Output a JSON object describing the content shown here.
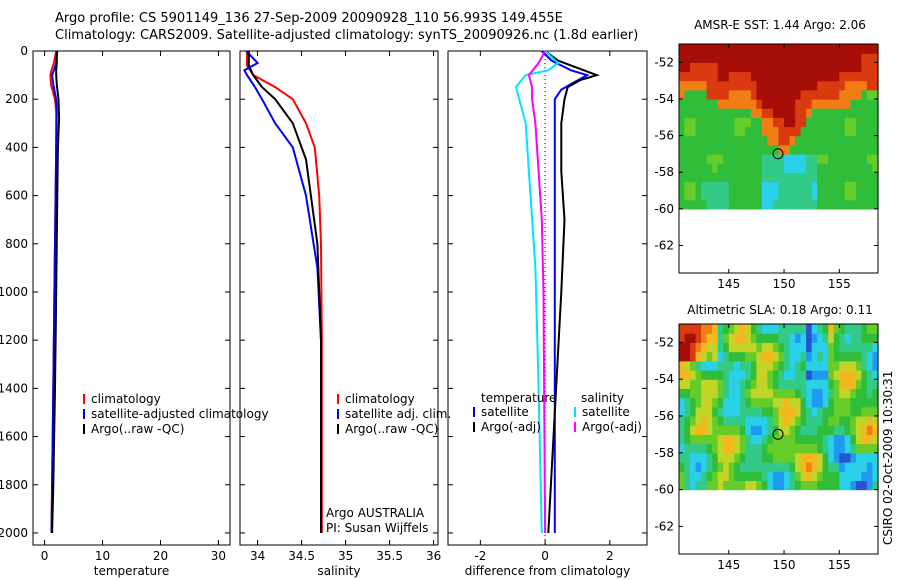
{
  "header": {
    "title_line1": "Argo profile: CS 5901149_136 27-Sep-2009 20090928_110 56.993S 149.455E",
    "title_line2": "Climatology: CARS2009. Satellite-adjusted climatology: synTS_20090926.nc (1.8d earlier)"
  },
  "footer_stamp": "CSIRO 02-Oct-2009 10:30:31",
  "colors": {
    "climatology": "#ff0000",
    "satellite": "#0000ff",
    "argo": "#000000",
    "sal_satellite": "#00e5ff",
    "sal_argo": "#ff00ff"
  },
  "chart_data": [
    {
      "id": "temperature",
      "type": "line",
      "xlabel": "temperature",
      "ylabel": "",
      "xlim": [
        -2,
        32
      ],
      "ylim": [
        2050,
        0
      ],
      "xticks": [
        0,
        10,
        20,
        30
      ],
      "yticks": [
        0,
        200,
        400,
        600,
        800,
        1000,
        1200,
        1400,
        1600,
        1800,
        2000
      ],
      "legend": [
        "climatology",
        "satellite-adjusted climatology",
        "Argo(..raw -QC)"
      ],
      "series": [
        {
          "name": "climatology",
          "color": "#ff0000",
          "x": [
            2.0,
            1.6,
            1.2,
            1.0,
            1.1,
            1.8,
            2.0,
            2.0,
            1.9,
            1.7,
            1.5,
            1.3,
            1.2
          ],
          "y": [
            0,
            50,
            80,
            100,
            140,
            200,
            250,
            400,
            600,
            1000,
            1400,
            1800,
            2000
          ]
        },
        {
          "name": "satellite-adjusted climatology",
          "color": "#0000ff",
          "x": [
            2.2,
            2.0,
            1.6,
            1.3,
            1.5,
            2.0,
            2.1,
            2.0,
            1.9,
            1.7,
            1.5,
            1.3,
            1.2
          ],
          "y": [
            0,
            50,
            80,
            100,
            140,
            200,
            250,
            400,
            600,
            1000,
            1400,
            1800,
            2000
          ]
        },
        {
          "name": "Argo(..raw -QC)",
          "color": "#000000",
          "x": [
            2.1,
            2.1,
            2.0,
            2.0,
            2.1,
            2.4,
            2.5,
            2.3,
            2.2,
            2.0,
            1.8,
            1.5,
            1.3
          ],
          "y": [
            0,
            50,
            80,
            100,
            140,
            200,
            280,
            400,
            600,
            1000,
            1400,
            1800,
            2000
          ]
        }
      ]
    },
    {
      "id": "salinity",
      "type": "line",
      "xlabel": "salinity",
      "ylabel": "",
      "xlim": [
        33.8,
        36.05
      ],
      "ylim": [
        2050,
        0
      ],
      "xticks": [
        34,
        34.5,
        35,
        35.5,
        36
      ],
      "xtick_labels": [
        "34",
        "34.5",
        "35",
        "35.5",
        "36"
      ],
      "legend": [
        "climatology",
        "satellite adj. clim.",
        "Argo(..raw -QC)"
      ],
      "annotation": [
        "Argo AUSTRALIA",
        "PI: Susan Wijffels"
      ],
      "series": [
        {
          "name": "climatology",
          "color": "#ff0000",
          "x": [
            33.88,
            33.88,
            33.95,
            34.2,
            34.4,
            34.55,
            34.65,
            34.7,
            34.72,
            34.73,
            34.73,
            34.73
          ],
          "y": [
            0,
            60,
            100,
            150,
            200,
            300,
            400,
            600,
            800,
            1200,
            1600,
            2000
          ]
        },
        {
          "name": "satellite adj. clim.",
          "color": "#0000ff",
          "x": [
            33.87,
            34.0,
            33.85,
            33.88,
            33.97,
            34.05,
            34.2,
            34.4,
            34.55,
            34.68,
            34.72,
            34.72,
            34.72
          ],
          "y": [
            0,
            50,
            80,
            100,
            150,
            200,
            300,
            400,
            600,
            900,
            1200,
            1600,
            2000
          ]
        },
        {
          "name": "Argo(..raw -QC)",
          "color": "#000000",
          "x": [
            33.9,
            33.9,
            33.95,
            34.05,
            34.2,
            34.4,
            34.55,
            34.68,
            34.72,
            34.72,
            34.72
          ],
          "y": [
            0,
            60,
            100,
            150,
            200,
            300,
            450,
            800,
            1200,
            1600,
            2000
          ]
        }
      ]
    },
    {
      "id": "difference",
      "type": "line",
      "xlabel": "difference from climatology",
      "ylabel": "",
      "xlim": [
        -3,
        3.15
      ],
      "ylim": [
        2050,
        0
      ],
      "xticks": [
        -2,
        0,
        2
      ],
      "legend_temperature_header": "temperature",
      "legend_salinity_header": "salinity",
      "legend": [
        "satellite",
        "Argo(-adj)",
        "satellite",
        "Argo(-adj)"
      ],
      "series": [
        {
          "name": "temperature satellite",
          "color": "#0000ff",
          "x": [
            -0.1,
            0.2,
            0.8,
            1.3,
            0.9,
            0.5,
            0.3,
            0.3,
            0.3,
            0.3,
            0.3,
            0.3
          ],
          "y": [
            0,
            40,
            80,
            100,
            130,
            160,
            200,
            300,
            600,
            1000,
            1400,
            2000
          ]
        },
        {
          "name": "temperature Argo(-adj)",
          "color": "#000000",
          "x": [
            0,
            0.4,
            1.2,
            1.6,
            1.1,
            0.7,
            0.6,
            0.5,
            0.5,
            0.6,
            0.5,
            0.3,
            0.1
          ],
          "y": [
            0,
            40,
            80,
            100,
            120,
            150,
            200,
            300,
            500,
            700,
            1000,
            1500,
            2000
          ]
        },
        {
          "name": "salinity satellite",
          "color": "#00e5ff",
          "x": [
            0,
            0.4,
            0.1,
            -0.6,
            -0.9,
            -0.8,
            -0.6,
            -0.5,
            -0.3,
            -0.2,
            -0.1
          ],
          "y": [
            0,
            50,
            80,
            100,
            150,
            200,
            300,
            500,
            900,
            1400,
            2000
          ]
        },
        {
          "name": "salinity Argo(-adj)",
          "color": "#ff00ff",
          "x": [
            0,
            -0.2,
            -0.5,
            -0.4,
            -0.4,
            -0.3,
            -0.2,
            -0.1,
            -0.05,
            0
          ],
          "y": [
            0,
            50,
            100,
            150,
            200,
            300,
            500,
            700,
            1000,
            2000
          ]
        }
      ]
    },
    {
      "id": "sst_map",
      "type": "heatmap",
      "title": "AMSR-E SST: 1.44  Argo: 2.06",
      "xlim": [
        140.5,
        158.5
      ],
      "ylim": [
        -63.5,
        -51
      ],
      "xticks": [
        145,
        150,
        155
      ],
      "yticks": [
        -52,
        -54,
        -56,
        -58,
        -60,
        -62
      ],
      "marker": {
        "lon": 149.455,
        "lat": -56.993
      },
      "data_extent_lat_min": -60
    },
    {
      "id": "sla_map",
      "type": "heatmap",
      "title": "Altimetric SLA: 0.18  Argo: 0.11",
      "xlim": [
        140.5,
        158.5
      ],
      "ylim": [
        -63.5,
        -51
      ],
      "xticks": [
        145,
        150,
        155
      ],
      "yticks": [
        -52,
        -54,
        -56,
        -58,
        -60,
        -62
      ],
      "marker": {
        "lon": 149.455,
        "lat": -56.993
      },
      "data_extent_lat_min": -60
    }
  ]
}
